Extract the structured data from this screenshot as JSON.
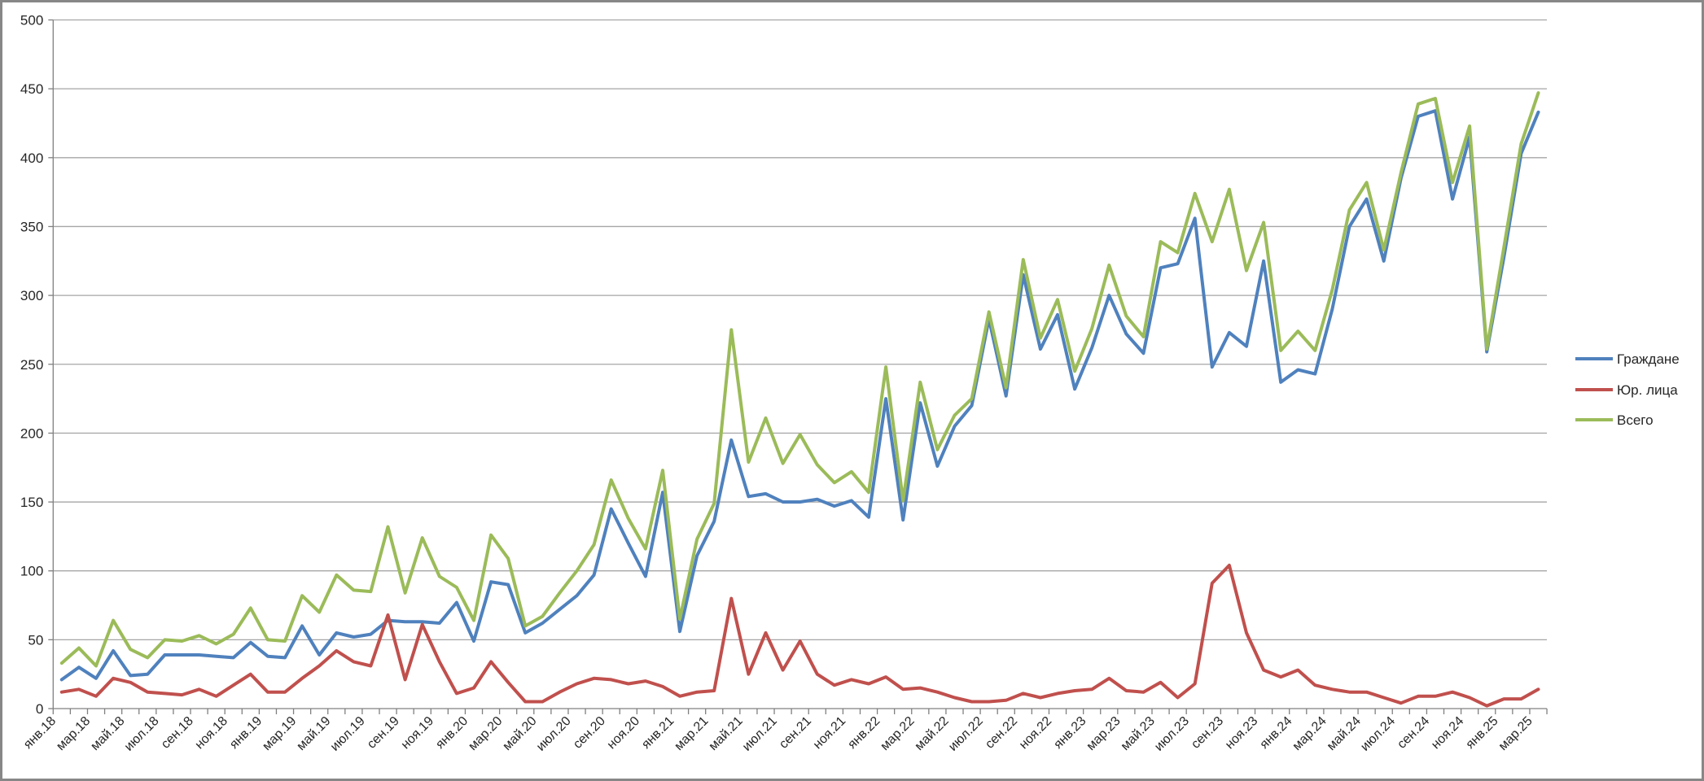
{
  "chart_data": {
    "type": "line",
    "title": "",
    "xlabel": "",
    "ylabel": "",
    "ylim": [
      0,
      500
    ],
    "y_ticks": [
      0,
      50,
      100,
      150,
      200,
      250,
      300,
      350,
      400,
      450,
      500
    ],
    "grid": true,
    "legend_position": "right",
    "x_tick_label_every": 2,
    "x": [
      "янв.18",
      "фев.18",
      "мар.18",
      "апр.18",
      "май.18",
      "июн.18",
      "июл.18",
      "авг.18",
      "сен.18",
      "окт.18",
      "ноя.18",
      "дек.18",
      "янв.19",
      "фев.19",
      "мар.19",
      "апр.19",
      "май.19",
      "июн.19",
      "июл.19",
      "авг.19",
      "сен.19",
      "окт.19",
      "ноя.19",
      "дек.19",
      "янв.20",
      "фев.20",
      "мар.20",
      "апр.20",
      "май.20",
      "июн.20",
      "июл.20",
      "авг.20",
      "сен.20",
      "окт.20",
      "ноя.20",
      "дек.20",
      "янв.21",
      "фев.21",
      "мар.21",
      "апр.21",
      "май.21",
      "июн.21",
      "июл.21",
      "авг.21",
      "сен.21",
      "окт.21",
      "ноя.21",
      "дек.21",
      "янв.22",
      "фев.22",
      "мар.22",
      "апр.22",
      "май.22",
      "июн.22",
      "июл.22",
      "авг.22",
      "сен.22",
      "окт.22",
      "ноя.22",
      "дек.22",
      "янв.23",
      "фев.23",
      "мар.23",
      "апр.23",
      "май.23",
      "июн.23",
      "июл.23",
      "авг.23",
      "сен.23",
      "окт.23",
      "ноя.23",
      "дек.23",
      "янв.24",
      "фев.24",
      "мар.24",
      "апр.24",
      "май.24",
      "июн.24",
      "июл.24",
      "авг.24",
      "сен.24",
      "окт.24",
      "ноя.24",
      "дек.24",
      "янв.25",
      "фев.25",
      "мар.25"
    ],
    "series": [
      {
        "name": "Граждане",
        "color": "#4F81BD",
        "values": [
          21,
          30,
          22,
          42,
          24,
          25,
          39,
          39,
          39,
          38,
          37,
          48,
          38,
          37,
          60,
          39,
          55,
          52,
          54,
          64,
          63,
          63,
          62,
          77,
          49,
          92,
          90,
          55,
          62,
          72,
          82,
          97,
          145,
          120,
          96,
          157,
          56,
          111,
          136,
          195,
          154,
          156,
          150,
          150,
          152,
          147,
          151,
          139,
          225,
          137,
          222,
          176,
          205,
          220,
          283,
          227,
          315,
          261,
          286,
          232,
          262,
          300,
          272,
          258,
          320,
          323,
          356,
          248,
          273,
          263,
          325,
          237,
          246,
          243,
          290,
          350,
          370,
          325,
          385,
          430,
          434,
          370,
          415,
          259,
          328,
          403,
          433
        ]
      },
      {
        "name": "Юр. лица",
        "color": "#C0504D",
        "values": [
          12,
          14,
          9,
          22,
          19,
          12,
          11,
          10,
          14,
          9,
          17,
          25,
          12,
          12,
          22,
          31,
          42,
          34,
          31,
          68,
          21,
          61,
          34,
          11,
          15,
          34,
          19,
          5,
          5,
          12,
          18,
          22,
          21,
          18,
          20,
          16,
          9,
          12,
          13,
          80,
          25,
          55,
          28,
          49,
          25,
          17,
          21,
          18,
          23,
          14,
          15,
          12,
          8,
          5,
          5,
          6,
          11,
          8,
          11,
          13,
          14,
          22,
          13,
          12,
          19,
          8,
          18,
          91,
          104,
          55,
          28,
          23,
          28,
          17,
          14,
          12,
          12,
          8,
          4,
          9,
          9,
          12,
          8,
          2,
          7,
          7,
          14
        ]
      },
      {
        "name": "Всего",
        "color": "#9BBB59",
        "values": [
          33,
          44,
          31,
          64,
          43,
          37,
          50,
          49,
          53,
          47,
          54,
          73,
          50,
          49,
          82,
          70,
          97,
          86,
          85,
          132,
          84,
          124,
          96,
          88,
          64,
          126,
          109,
          60,
          67,
          84,
          100,
          119,
          166,
          138,
          116,
          173,
          65,
          123,
          149,
          275,
          179,
          211,
          178,
          199,
          177,
          164,
          172,
          157,
          248,
          151,
          237,
          188,
          213,
          225,
          288,
          233,
          326,
          269,
          297,
          245,
          276,
          322,
          285,
          270,
          339,
          331,
          374,
          339,
          377,
          318,
          353,
          260,
          274,
          260,
          304,
          362,
          382,
          333,
          389,
          439,
          443,
          382,
          423,
          261,
          335,
          410,
          447
        ]
      }
    ]
  },
  "legend": {
    "items": [
      {
        "label": "Граждане",
        "color": "#4F81BD"
      },
      {
        "label": "Юр. лица",
        "color": "#C0504D"
      },
      {
        "label": "Всего",
        "color": "#9BBB59"
      }
    ]
  },
  "style": {
    "background": "#FFFFFF",
    "border_color": "#878787",
    "grid_color": "#A6A6A6",
    "axis_color": "#808080",
    "text_color": "#262626"
  }
}
